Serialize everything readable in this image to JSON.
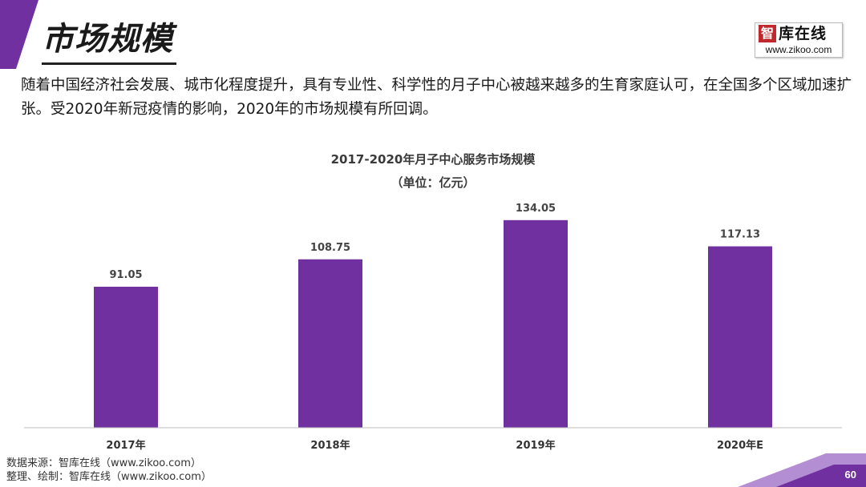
{
  "header": {
    "title": "市场规模",
    "logo_mark": "智",
    "logo_name": "库在线",
    "logo_url": "www.zikoo.com"
  },
  "intro_text": "随着中国经济社会发展、城市化程度提升，具有专业性、科学性的月子中心被越来越多的生育家庭认可，在全国多个区域加速扩张。受2020年新冠疫情的影响，2020年的市场规模有所回调。",
  "colors": {
    "accent": "#7030a0",
    "bar": "#7030a0",
    "deco_light": "#b38ed3"
  },
  "chart_data": {
    "type": "bar",
    "title": "2017-2020年月子中心服务市场规模",
    "subtitle": "（单位：亿元）",
    "categories": [
      "2017年",
      "2018年",
      "2019年",
      "2020年E"
    ],
    "values": [
      91.05,
      108.75,
      134.05,
      117.13
    ],
    "value_labels": [
      "91.05",
      "108.75",
      "134.05",
      "117.13"
    ],
    "ylim": [
      0,
      150
    ],
    "grid": false,
    "legend": "none"
  },
  "footer": {
    "source_line": "数据来源：智库在线（www.zikoo.com）",
    "compiler_line": "整理、绘制：智库在线（www.zikoo.com）",
    "page_number": "60"
  }
}
